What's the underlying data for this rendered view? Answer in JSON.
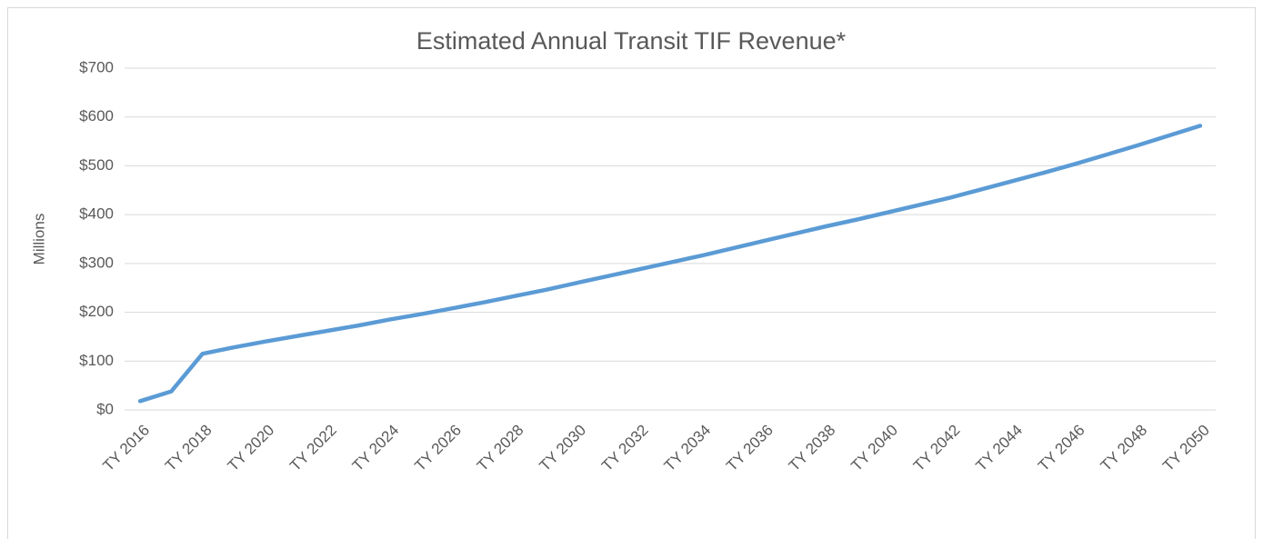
{
  "chart_data": {
    "type": "line",
    "title": "Estimated Annual Transit TIF Revenue*",
    "y_label": "Millions",
    "categories": [
      "TY 2016",
      null,
      "TY 2018",
      null,
      "TY 2020",
      null,
      "TY 2022",
      null,
      "TY 2024",
      null,
      "TY 2026",
      null,
      "TY 2028",
      null,
      "TY 2030",
      null,
      "TY 2032",
      null,
      "TY 2034",
      null,
      "TY 2036",
      null,
      "TY 2038",
      null,
      "TY 2040",
      null,
      "TY 2042",
      null,
      "TY 2044",
      null,
      "TY 2046",
      null,
      "TY 2048",
      null,
      "TY 2050"
    ],
    "values": [
      18,
      38,
      115,
      128,
      140,
      151,
      162,
      173,
      185,
      196,
      208,
      220,
      233,
      246,
      260,
      274,
      288,
      302,
      316,
      331,
      346,
      361,
      376,
      390,
      405,
      420,
      435,
      452,
      469,
      486,
      504,
      523,
      542,
      562,
      582
    ],
    "color": "#5b9bd5",
    "ylim": [
      0,
      700
    ],
    "yticks": [
      {
        "value": 0,
        "label": "$0"
      },
      {
        "value": 100,
        "label": "$100"
      },
      {
        "value": 200,
        "label": "$200"
      },
      {
        "value": 300,
        "label": "$300"
      },
      {
        "value": 400,
        "label": "$400"
      },
      {
        "value": 500,
        "label": "$500"
      },
      {
        "value": 600,
        "label": "$600"
      },
      {
        "value": 700,
        "label": "$700"
      }
    ],
    "grid": true
  }
}
